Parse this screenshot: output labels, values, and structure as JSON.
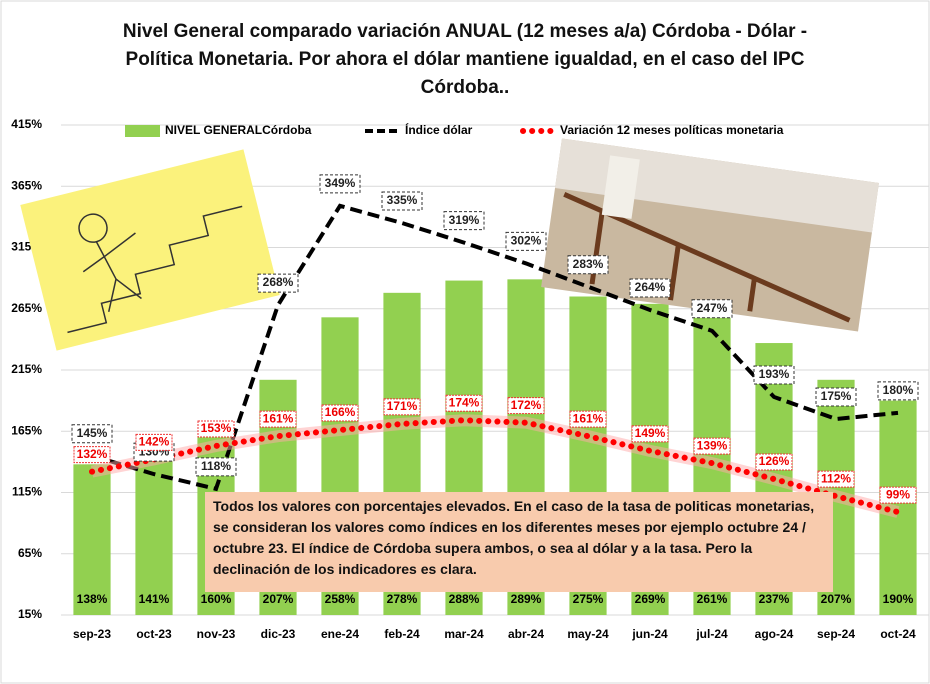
{
  "chart_data": {
    "type": "bar-line",
    "title": "Nivel General comparado  variación ANUAL (12 meses a/a)  Córdoba -  Dólar - Política Monetaria. Por ahora el dólar mantiene igualdad, en el caso del IPC Córdoba..",
    "annotation": "Todos los valores con porcentajes elevados. En el caso de la tasa de politicas monetarias, se consideran los valores como índices en los diferentes meses por ejemplo octubre 24 / octubre 23. El índice de Córdoba supera ambos, o sea al dólar y a la tasa.  Pero la declinación de los indicadores es clara.",
    "categories": [
      "sep-23",
      "oct-23",
      "nov-23",
      "dic-23",
      "ene-24",
      "feb-24",
      "mar-24",
      "abr-24",
      "may-24",
      "jun-24",
      "jul-24",
      "ago-24",
      "sep-24",
      "oct-24"
    ],
    "series": [
      {
        "name": "NIVEL GENERALCórdoba",
        "type": "bar",
        "color": "#92d050",
        "values": [
          138,
          141,
          160,
          207,
          258,
          278,
          288,
          289,
          275,
          269,
          261,
          237,
          207,
          190
        ],
        "value_labels": [
          "138%",
          "141%",
          "160%",
          "207%",
          "258%",
          "278%",
          "288%",
          "289%",
          "275%",
          "269%",
          "261%",
          "237%",
          "207%",
          "190%"
        ]
      },
      {
        "name": "Índice dólar",
        "type": "line",
        "color": "#000000",
        "values": [
          145,
          130,
          118,
          268,
          349,
          335,
          319,
          302,
          283,
          264,
          247,
          193,
          175,
          180
        ],
        "value_labels": [
          "145%",
          "130%",
          "118%",
          "268%",
          "349%",
          "335%",
          "319%",
          "302%",
          "283%",
          "264%",
          "247%",
          "193%",
          "175%",
          "180%"
        ]
      },
      {
        "name": "Variación 12 meses  políticas monetaria",
        "type": "dotted",
        "color": "#ff0000",
        "values": [
          132,
          142,
          153,
          161,
          166,
          171,
          174,
          172,
          161,
          149,
          139,
          126,
          112,
          99
        ],
        "value_labels": [
          "132%",
          "142%",
          "153%",
          "161%",
          "166%",
          "171%",
          "174%",
          "172%",
          "161%",
          "149%",
          "139%",
          "126%",
          "112%",
          "99%"
        ]
      }
    ],
    "ylim": [
      15,
      415
    ],
    "yticks": [
      {
        "value": 15,
        "label": "15%"
      },
      {
        "value": 65,
        "label": "65%"
      },
      {
        "value": 115,
        "label": "115%"
      },
      {
        "value": 165,
        "label": "165%"
      },
      {
        "value": 215,
        "label": "215%"
      },
      {
        "value": 265,
        "label": "265%"
      },
      {
        "value": 315,
        "label": "315%"
      },
      {
        "value": 365,
        "label": "365%"
      },
      {
        "value": 415,
        "label": "415%"
      }
    ],
    "grid": true,
    "legend": "top"
  }
}
